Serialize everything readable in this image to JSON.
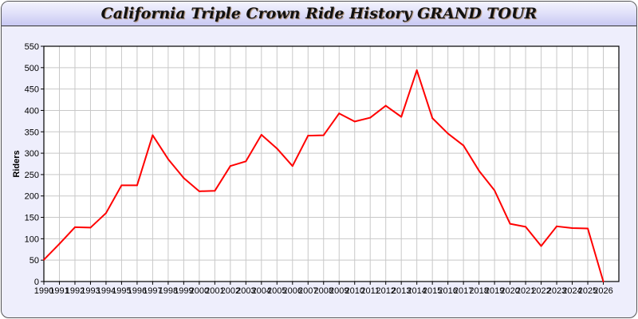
{
  "title": "California Triple Crown Ride History GRAND TOUR",
  "chart_data": {
    "type": "line",
    "title": "California Triple Crown Ride History GRAND TOUR",
    "xlabel": "",
    "ylabel": "Riders",
    "x": [
      1990,
      1991,
      1992,
      1993,
      1994,
      1995,
      1996,
      1997,
      1998,
      1999,
      2000,
      2001,
      2002,
      2003,
      2004,
      2005,
      2006,
      2007,
      2008,
      2009,
      2010,
      2011,
      2012,
      2013,
      2014,
      2015,
      2016,
      2017,
      2018,
      2019,
      2020,
      2021,
      2022,
      2023,
      2024,
      2025,
      2026
    ],
    "series": [
      {
        "values": [
          51,
          88,
          127,
          126,
          160,
          225,
          225,
          342,
          286,
          242,
          211,
          212,
          270,
          281,
          343,
          311,
          270,
          341,
          342,
          393,
          374,
          383,
          411,
          385,
          494,
          382,
          346,
          318,
          259,
          213,
          135,
          128,
          83,
          129,
          125,
          124,
          0
        ],
        "color": "#ff0000"
      }
    ],
    "ylim": [
      0,
      550
    ],
    "yticks": [
      0,
      50,
      100,
      150,
      200,
      250,
      300,
      350,
      400,
      450,
      500,
      550
    ],
    "xlim": [
      1990,
      2027
    ],
    "grid": true,
    "grid_color": "#c8c8c8"
  }
}
